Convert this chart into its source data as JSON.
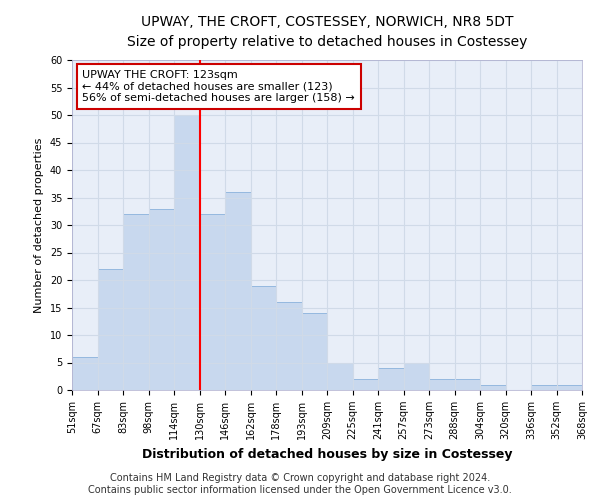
{
  "title": "UPWAY, THE CROFT, COSTESSEY, NORWICH, NR8 5DT",
  "subtitle": "Size of property relative to detached houses in Costessey",
  "xlabel": "Distribution of detached houses by size in Costessey",
  "ylabel": "Number of detached properties",
  "bar_color": "#c8d8ee",
  "bar_edge_color": "#7aa8d8",
  "bar_heights": [
    6,
    22,
    32,
    33,
    50,
    32,
    36,
    19,
    16,
    14,
    5,
    2,
    4,
    5,
    2,
    2,
    1,
    0,
    1,
    1
  ],
  "bin_labels": [
    "51sqm",
    "67sqm",
    "83sqm",
    "98sqm",
    "114sqm",
    "130sqm",
    "146sqm",
    "162sqm",
    "178sqm",
    "193sqm",
    "209sqm",
    "225sqm",
    "241sqm",
    "257sqm",
    "273sqm",
    "288sqm",
    "304sqm",
    "320sqm",
    "336sqm",
    "352sqm",
    "368sqm"
  ],
  "annotation_text": "UPWAY THE CROFT: 123sqm\n← 44% of detached houses are smaller (123)\n56% of semi-detached houses are larger (158) →",
  "annotation_box_color": "#ffffff",
  "annotation_box_edge_color": "#cc0000",
  "ylim": [
    0,
    60
  ],
  "yticks": [
    0,
    5,
    10,
    15,
    20,
    25,
    30,
    35,
    40,
    45,
    50,
    55,
    60
  ],
  "footer_line1": "Contains HM Land Registry data © Crown copyright and database right 2024.",
  "footer_line2": "Contains public sector information licensed under the Open Government Licence v3.0.",
  "bg_color": "#e8eef8",
  "grid_color": "#d0dae8",
  "title_fontsize": 10,
  "subtitle_fontsize": 9,
  "xlabel_fontsize": 9,
  "ylabel_fontsize": 8,
  "tick_fontsize": 7,
  "annotation_fontsize": 8,
  "footer_fontsize": 7
}
